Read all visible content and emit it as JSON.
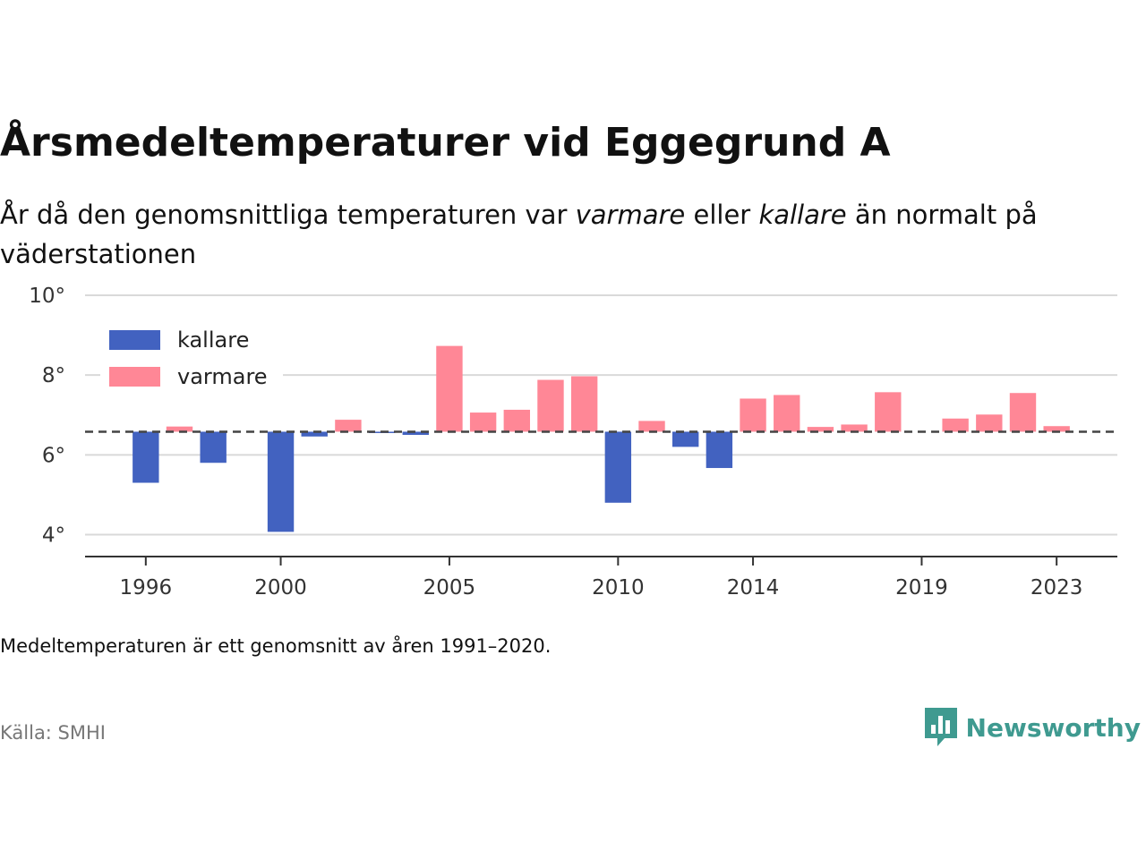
{
  "header": {
    "title": "Årsmedeltemperaturer vid Eggegrund A",
    "subtitle_parts": {
      "p1": "År då den genomsnittliga temperaturen var ",
      "warm": "varmare",
      "p2": " eller ",
      "cold": "kallare",
      "p3": " än normalt på väderstationen"
    }
  },
  "footer": {
    "note": "Medeltemperaturen är ett genomsnitt av åren 1991–2020.",
    "source": "Källa: SMHI",
    "brand": "Newsworthy",
    "brand_icon": "newsworthy-logo-icon"
  },
  "colors": {
    "kallare": "#4262c0",
    "varmare": "#ff8796",
    "grid": "#d9d9d9",
    "axis": "#333333",
    "reference": "#444444",
    "brand": "#3f9a90"
  },
  "chart_data": {
    "type": "bar",
    "baseline": 6.58,
    "ylim": [
      3.45,
      10
    ],
    "yticks": [
      4,
      6,
      8,
      10
    ],
    "ytick_suffix": "°",
    "xlim": [
      1994.2,
      2024.8
    ],
    "xticks": [
      1996,
      2000,
      2005,
      2010,
      2014,
      2019,
      2023
    ],
    "grid": true,
    "legend_position": "top-left",
    "legend": [
      {
        "key": "kallare",
        "label": "kallare"
      },
      {
        "key": "varmare",
        "label": "varmare"
      }
    ],
    "series": [
      {
        "name": "kallare",
        "points": [
          {
            "x": 1996,
            "y": 5.3
          },
          {
            "x": 1998,
            "y": 5.8
          },
          {
            "x": 2000,
            "y": 4.07
          },
          {
            "x": 2001,
            "y": 6.46
          },
          {
            "x": 2003,
            "y": 6.55
          },
          {
            "x": 2004,
            "y": 6.5
          },
          {
            "x": 2010,
            "y": 4.8
          },
          {
            "x": 2012,
            "y": 6.2
          },
          {
            "x": 2013,
            "y": 5.67
          }
        ]
      },
      {
        "name": "varmare",
        "points": [
          {
            "x": 1997,
            "y": 6.71
          },
          {
            "x": 2002,
            "y": 6.88
          },
          {
            "x": 2005,
            "y": 8.73
          },
          {
            "x": 2006,
            "y": 7.06
          },
          {
            "x": 2007,
            "y": 7.13
          },
          {
            "x": 2008,
            "y": 7.88
          },
          {
            "x": 2009,
            "y": 7.97
          },
          {
            "x": 2011,
            "y": 6.85
          },
          {
            "x": 2014,
            "y": 7.41
          },
          {
            "x": 2015,
            "y": 7.5
          },
          {
            "x": 2016,
            "y": 6.7
          },
          {
            "x": 2017,
            "y": 6.76
          },
          {
            "x": 2018,
            "y": 7.57
          },
          {
            "x": 2020,
            "y": 6.91
          },
          {
            "x": 2021,
            "y": 7.01
          },
          {
            "x": 2022,
            "y": 7.55
          },
          {
            "x": 2023,
            "y": 6.72
          }
        ]
      }
    ]
  }
}
